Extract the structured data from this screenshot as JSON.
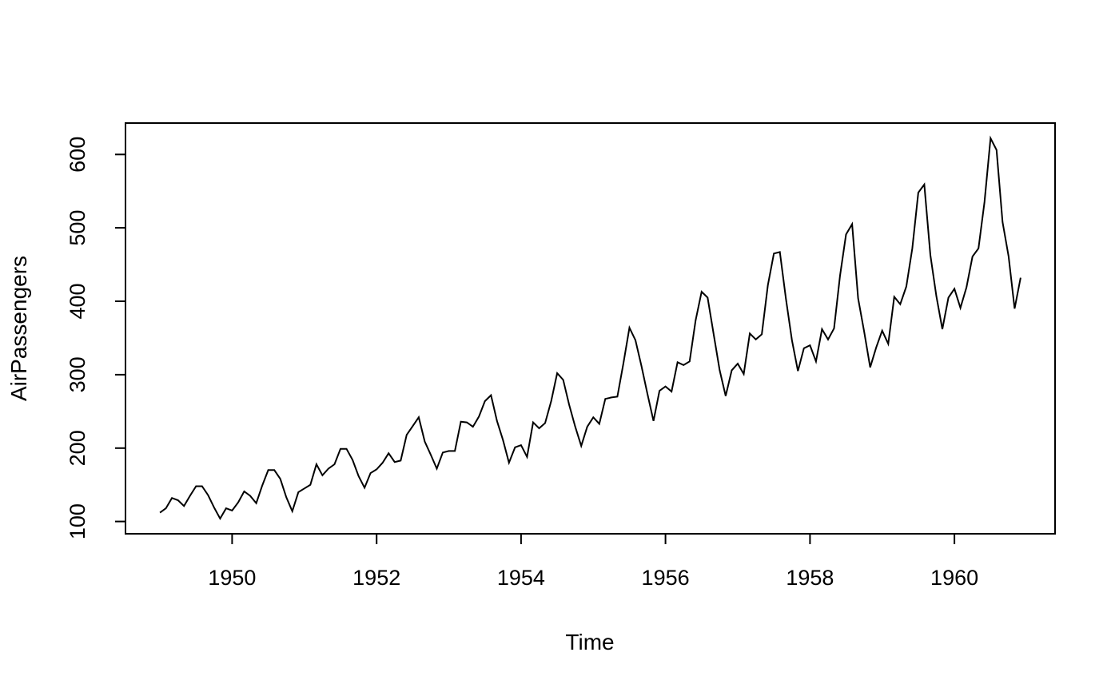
{
  "chart_data": {
    "type": "line",
    "title": "",
    "xlabel": "Time",
    "ylabel": "AirPassengers",
    "line_color": "#000000",
    "background_color": "#ffffff",
    "grid": false,
    "legend": "none",
    "x_start": 1949,
    "x_step": 0.0833333,
    "x_ticks": [
      1950,
      1952,
      1954,
      1956,
      1958,
      1960
    ],
    "y_ticks": [
      100,
      200,
      300,
      400,
      500,
      600
    ],
    "xlim": [
      1948.5233,
      1961.3933
    ],
    "ylim": [
      83.28,
      642.72
    ],
    "series": [
      {
        "name": "AirPassengers",
        "values": [
          112,
          118,
          132,
          129,
          121,
          135,
          148,
          148,
          136,
          119,
          104,
          118,
          115,
          126,
          141,
          135,
          125,
          149,
          170,
          170,
          158,
          133,
          114,
          140,
          145,
          150,
          178,
          163,
          172,
          178,
          199,
          199,
          184,
          162,
          146,
          166,
          171,
          180,
          193,
          181,
          183,
          218,
          230,
          242,
          209,
          191,
          172,
          194,
          196,
          196,
          236,
          235,
          229,
          243,
          264,
          272,
          237,
          211,
          180,
          201,
          204,
          188,
          235,
          227,
          234,
          264,
          302,
          293,
          259,
          229,
          203,
          229,
          242,
          233,
          267,
          269,
          270,
          315,
          364,
          347,
          312,
          274,
          237,
          278,
          284,
          277,
          317,
          313,
          318,
          374,
          413,
          405,
          355,
          306,
          271,
          306,
          315,
          301,
          356,
          348,
          355,
          422,
          465,
          467,
          404,
          347,
          305,
          336,
          340,
          318,
          362,
          348,
          363,
          435,
          491,
          505,
          404,
          359,
          310,
          337,
          360,
          342,
          406,
          396,
          420,
          472,
          548,
          559,
          463,
          407,
          362,
          405,
          417,
          391,
          419,
          461,
          472,
          535,
          622,
          606,
          508,
          461,
          390,
          432
        ]
      }
    ]
  }
}
